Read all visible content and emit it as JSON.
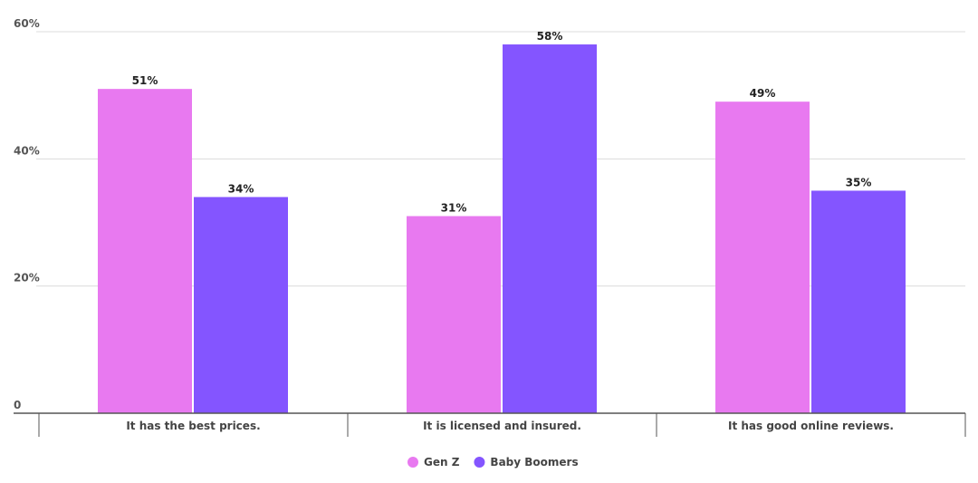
{
  "chart_data": {
    "type": "bar",
    "title": "",
    "xlabel": "",
    "ylabel": "",
    "categories": [
      "It has the best prices.",
      "It is licensed and insured.",
      "It has good online reviews."
    ],
    "series": [
      {
        "name": "Gen Z",
        "color": "#E879F0",
        "values": [
          51,
          31,
          49
        ],
        "labels": [
          "51%",
          "31%",
          "49%"
        ]
      },
      {
        "name": "Baby Boomers",
        "color": "#8455FF",
        "values": [
          34,
          58,
          35
        ],
        "labels": [
          "34%",
          "58%",
          "35%"
        ]
      }
    ],
    "ylim": [
      0,
      60
    ],
    "yticks": [
      0,
      20,
      40,
      60
    ],
    "ytick_labels": [
      "0",
      "20%",
      "40%",
      "60%"
    ],
    "grid": true,
    "legend": "bottom-center"
  }
}
